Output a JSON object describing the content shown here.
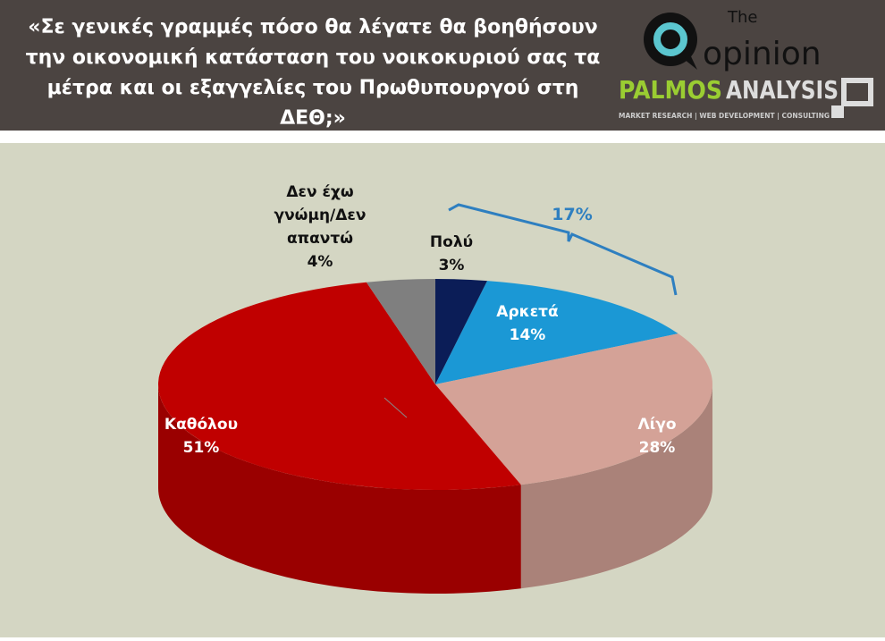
{
  "header": {
    "title": "«Σε γενικές γραμμές πόσο θα λέγατε θα βοηθήσουν την οικονομική κατάσταση του νοικοκυριού σας τα μέτρα και οι εξαγγελίες του Πρωθυπουργού στη ΔΕΘ;»",
    "logo_the": "The",
    "logo_opinion": "opinion",
    "logo_palmos": "PALMOS",
    "logo_analysis": "ANALYSIS",
    "logo_tagline": "MARKET RESEARCH | WEB DEVELOPMENT | CONSULTING"
  },
  "chart_data": {
    "type": "pie",
    "style": "3d",
    "slices": [
      {
        "label": "Πολύ",
        "value": 3,
        "display": "3%",
        "color": "#0b1d57"
      },
      {
        "label": "Αρκετά",
        "value": 14,
        "display": "14%",
        "color": "#1b98d5"
      },
      {
        "label": "Λίγο",
        "value": 28,
        "display": "28%",
        "color": "#d4a297"
      },
      {
        "label": "Καθόλου",
        "value": 51,
        "display": "51%",
        "color": "#c00000"
      },
      {
        "label": "Δεν έχω γνώμη/Δεν απαντώ",
        "value": 4,
        "display": "4%",
        "color": "#7f7f7f"
      }
    ],
    "bracket_annotation": {
      "text": "17%",
      "color": "#2e7fc0",
      "covers": [
        "Πολύ",
        "Αρκετά"
      ]
    }
  }
}
